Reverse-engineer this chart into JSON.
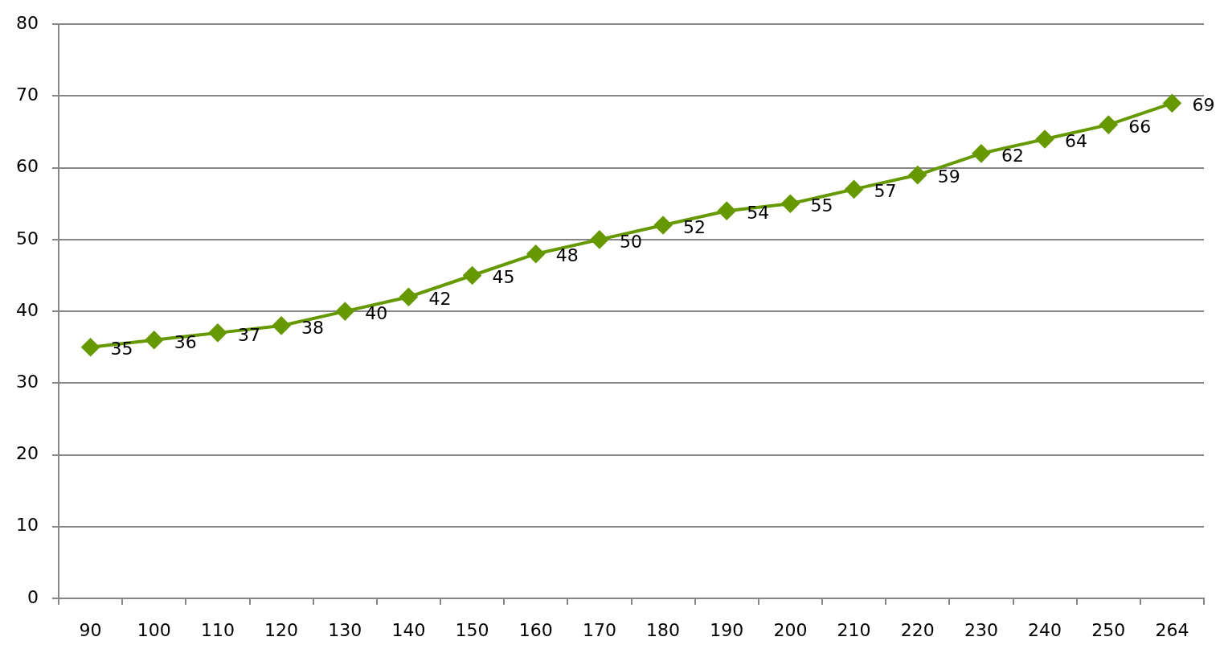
{
  "chart_data": {
    "type": "line",
    "categories": [
      "90",
      "100",
      "110",
      "120",
      "130",
      "140",
      "150",
      "160",
      "170",
      "180",
      "190",
      "200",
      "210",
      "220",
      "230",
      "240",
      "250",
      "264"
    ],
    "series": [
      {
        "color": "#669900",
        "values": [
          35,
          36,
          37,
          38,
          40,
          42,
          45,
          48,
          50,
          52,
          54,
          55,
          57,
          59,
          62,
          64,
          66,
          69
        ]
      }
    ],
    "ylim": [
      0,
      80
    ],
    "yticks": [
      0,
      10,
      20,
      30,
      40,
      50,
      60,
      70,
      80
    ],
    "grid": "y",
    "legend": false,
    "marker": "diamond",
    "line_style": "solid",
    "data_labels": true
  }
}
